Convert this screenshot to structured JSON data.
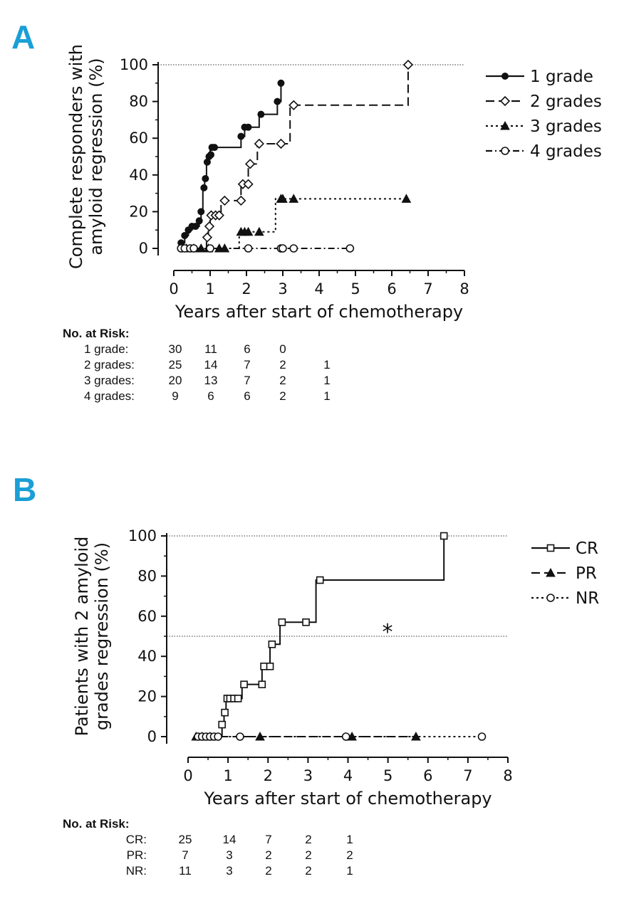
{
  "chart_data": [
    {
      "type": "line",
      "panel": "A",
      "ylabel": "Complete responders with\namyloid regression (%)",
      "xlabel": "Years after start of chemotherapy",
      "xlim": [
        0,
        8
      ],
      "ylim": [
        0,
        100
      ],
      "xticks": [
        "0",
        "1",
        "2",
        "3",
        "4",
        "5",
        "6",
        "7",
        "8"
      ],
      "yticks": [
        "0",
        "20",
        "40",
        "60",
        "80",
        "100"
      ],
      "reference_lines": [
        100
      ],
      "legend_position": "right",
      "series": [
        {
          "name": "1 grade",
          "marker": "filled-circle",
          "line_style": "solid",
          "steps": [
            [
              0.15,
              0
            ],
            [
              0.2,
              3
            ],
            [
              0.3,
              7
            ],
            [
              0.4,
              10
            ],
            [
              0.5,
              12
            ],
            [
              0.7,
              15
            ],
            [
              0.75,
              20
            ],
            [
              0.8,
              33
            ],
            [
              0.85,
              38
            ],
            [
              0.9,
              48
            ],
            [
              0.95,
              50
            ],
            [
              1.0,
              55
            ],
            [
              1.85,
              61
            ],
            [
              1.95,
              66
            ],
            [
              2.35,
              73
            ],
            [
              2.85,
              80
            ],
            [
              2.95,
              90
            ]
          ],
          "markers": [
            [
              0.2,
              3
            ],
            [
              0.3,
              7
            ],
            [
              0.4,
              10
            ],
            [
              0.5,
              12
            ],
            [
              0.6,
              12
            ],
            [
              0.7,
              15
            ],
            [
              0.75,
              20
            ],
            [
              0.83,
              33
            ],
            [
              0.87,
              38
            ],
            [
              0.92,
              47
            ],
            [
              0.97,
              50
            ],
            [
              1.02,
              51
            ],
            [
              1.05,
              55
            ],
            [
              1.12,
              55
            ],
            [
              1.85,
              61
            ],
            [
              1.95,
              66
            ],
            [
              2.05,
              66
            ],
            [
              2.4,
              73
            ],
            [
              2.85,
              80
            ],
            [
              2.95,
              90
            ]
          ]
        },
        {
          "name": "2 grades",
          "marker": "open-diamond",
          "line_style": "dashed",
          "steps": [
            [
              0.85,
              0
            ],
            [
              0.9,
              6
            ],
            [
              0.95,
              12
            ],
            [
              1.0,
              18
            ],
            [
              1.3,
              26
            ],
            [
              1.85,
              35
            ],
            [
              2.05,
              46
            ],
            [
              2.3,
              57
            ],
            [
              3.2,
              78
            ],
            [
              6.45,
              100
            ]
          ],
          "markers": [
            [
              0.92,
              6
            ],
            [
              0.98,
              12
            ],
            [
              1.03,
              18
            ],
            [
              1.15,
              18
            ],
            [
              1.25,
              18
            ],
            [
              1.4,
              26
            ],
            [
              1.85,
              26
            ],
            [
              1.9,
              35
            ],
            [
              2.05,
              35
            ],
            [
              2.1,
              46
            ],
            [
              2.35,
              57
            ],
            [
              2.95,
              57
            ],
            [
              3.3,
              78
            ],
            [
              6.45,
              100
            ]
          ]
        },
        {
          "name": "3 grades",
          "marker": "filled-triangle",
          "line_style": "dotted",
          "steps": [
            [
              0.15,
              0
            ],
            [
              1.8,
              9
            ],
            [
              2.8,
              27
            ],
            [
              6.4,
              27
            ]
          ],
          "markers": [
            [
              0.35,
              0
            ],
            [
              0.55,
              0
            ],
            [
              0.75,
              0
            ],
            [
              0.95,
              0
            ],
            [
              1.25,
              0
            ],
            [
              1.4,
              0
            ],
            [
              1.85,
              9
            ],
            [
              1.95,
              9
            ],
            [
              2.05,
              9
            ],
            [
              2.35,
              9
            ],
            [
              2.95,
              27
            ],
            [
              3.0,
              27
            ],
            [
              3.3,
              27
            ],
            [
              6.4,
              27
            ]
          ]
        },
        {
          "name": "4 grades",
          "marker": "open-circle",
          "line_style": "dash-dot",
          "steps": [
            [
              0.15,
              0
            ],
            [
              4.85,
              0
            ]
          ],
          "markers": [
            [
              0.2,
              0
            ],
            [
              0.3,
              0
            ],
            [
              0.45,
              0
            ],
            [
              0.55,
              0
            ],
            [
              1.0,
              0
            ],
            [
              2.05,
              0
            ],
            [
              2.95,
              0
            ],
            [
              3.0,
              0
            ],
            [
              3.3,
              0
            ],
            [
              4.85,
              0
            ]
          ]
        }
      ],
      "risk_table": {
        "title": "No. at Risk:",
        "rows": [
          {
            "label": "1 grade:",
            "values": [
              "30",
              "11",
              "6",
              "0",
              ""
            ]
          },
          {
            "label": "2 grades:",
            "values": [
              "25",
              "14",
              "7",
              "2",
              "1"
            ]
          },
          {
            "label": "3 grades:",
            "values": [
              "20",
              "13",
              "7",
              "2",
              "1"
            ]
          },
          {
            "label": "4 grades:",
            "values": [
              "9",
              "6",
              "6",
              "2",
              "1"
            ]
          }
        ]
      }
    },
    {
      "type": "line",
      "panel": "B",
      "ylabel": "Patients with 2 amyloid\ngrades regression (%)",
      "xlabel": "Years after start of chemotherapy",
      "xlim": [
        0,
        8
      ],
      "ylim": [
        0,
        100
      ],
      "xticks": [
        "0",
        "1",
        "2",
        "3",
        "4",
        "5",
        "6",
        "7",
        "8"
      ],
      "yticks": [
        "0",
        "20",
        "40",
        "60",
        "80",
        "100"
      ],
      "reference_lines": [
        100,
        50
      ],
      "annotation": "*",
      "legend_position": "right",
      "series": [
        {
          "name": "CR",
          "marker": "open-square",
          "line_style": "solid",
          "steps": [
            [
              0.75,
              0
            ],
            [
              0.85,
              6
            ],
            [
              0.9,
              12
            ],
            [
              0.95,
              19
            ],
            [
              1.35,
              26
            ],
            [
              1.85,
              35
            ],
            [
              2.05,
              46
            ],
            [
              2.3,
              57
            ],
            [
              3.2,
              78
            ],
            [
              6.4,
              100
            ]
          ],
          "markers": [
            [
              0.85,
              6
            ],
            [
              0.92,
              12
            ],
            [
              0.98,
              19
            ],
            [
              1.05,
              19
            ],
            [
              1.15,
              19
            ],
            [
              1.25,
              19
            ],
            [
              1.4,
              26
            ],
            [
              1.85,
              26
            ],
            [
              1.9,
              35
            ],
            [
              2.05,
              35
            ],
            [
              2.1,
              46
            ],
            [
              2.35,
              57
            ],
            [
              2.95,
              57
            ],
            [
              3.3,
              78
            ],
            [
              6.4,
              100
            ]
          ]
        },
        {
          "name": "PR",
          "marker": "filled-triangle",
          "line_style": "dashed",
          "steps": [
            [
              0.15,
              0
            ],
            [
              5.7,
              0
            ]
          ],
          "markers": [
            [
              0.2,
              0
            ],
            [
              0.35,
              0
            ],
            [
              0.55,
              0
            ],
            [
              1.8,
              0
            ],
            [
              4.1,
              0
            ],
            [
              5.7,
              0
            ]
          ]
        },
        {
          "name": "NR",
          "marker": "open-circle",
          "line_style": "dotted",
          "steps": [
            [
              0.15,
              0
            ],
            [
              7.35,
              0
            ]
          ],
          "markers": [
            [
              0.25,
              0
            ],
            [
              0.35,
              0
            ],
            [
              0.45,
              0
            ],
            [
              0.55,
              0
            ],
            [
              0.65,
              0
            ],
            [
              0.75,
              0
            ],
            [
              1.3,
              0
            ],
            [
              3.95,
              0
            ],
            [
              7.35,
              0
            ]
          ]
        }
      ],
      "risk_table": {
        "title": "No. at Risk:",
        "rows": [
          {
            "label": "CR:",
            "values": [
              "25",
              "14",
              "7",
              "2",
              "1"
            ]
          },
          {
            "label": "PR:",
            "values": [
              "7",
              "3",
              "2",
              "2",
              "2"
            ]
          },
          {
            "label": "NR:",
            "values": [
              "11",
              "3",
              "2",
              "2",
              "1"
            ]
          }
        ]
      }
    }
  ]
}
